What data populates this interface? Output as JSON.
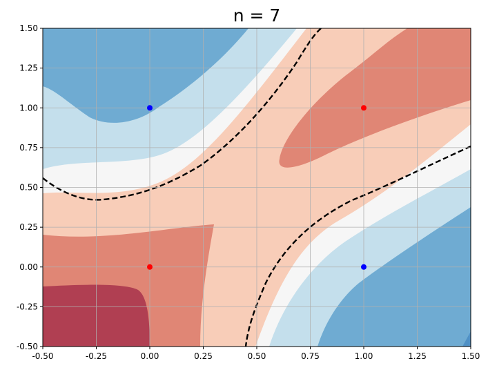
{
  "chart_data": {
    "type": "contourf",
    "title": "n = 7",
    "xlabel": "",
    "ylabel": "",
    "xlim": [
      -0.5,
      1.5
    ],
    "ylim": [
      -0.5,
      1.5
    ],
    "grid": true,
    "x_ticks": [
      "-0.50",
      "-0.25",
      "0.00",
      "0.25",
      "0.50",
      "0.75",
      "1.00",
      "1.25",
      "1.50"
    ],
    "y_ticks": [
      "-0.50",
      "-0.25",
      "0.00",
      "0.25",
      "0.50",
      "0.75",
      "1.00",
      "1.25",
      "1.50"
    ],
    "points": [
      {
        "x": 0,
        "y": 1,
        "color": "#0000ff"
      },
      {
        "x": 1,
        "y": 0,
        "color": "#0000ff"
      },
      {
        "x": 0,
        "y": 0,
        "color": "#ff0000"
      },
      {
        "x": 1,
        "y": 1,
        "color": "#ff0000"
      }
    ],
    "decision_boundary": {
      "style": "dashed",
      "color": "#000000"
    },
    "colormap": "RdBu_r",
    "band_colors": [
      "#4f90c5",
      "#6fabd2",
      "#c4dfec",
      "#f6f6f6",
      "#f8cdb8",
      "#e08675",
      "#b03f52"
    ]
  }
}
